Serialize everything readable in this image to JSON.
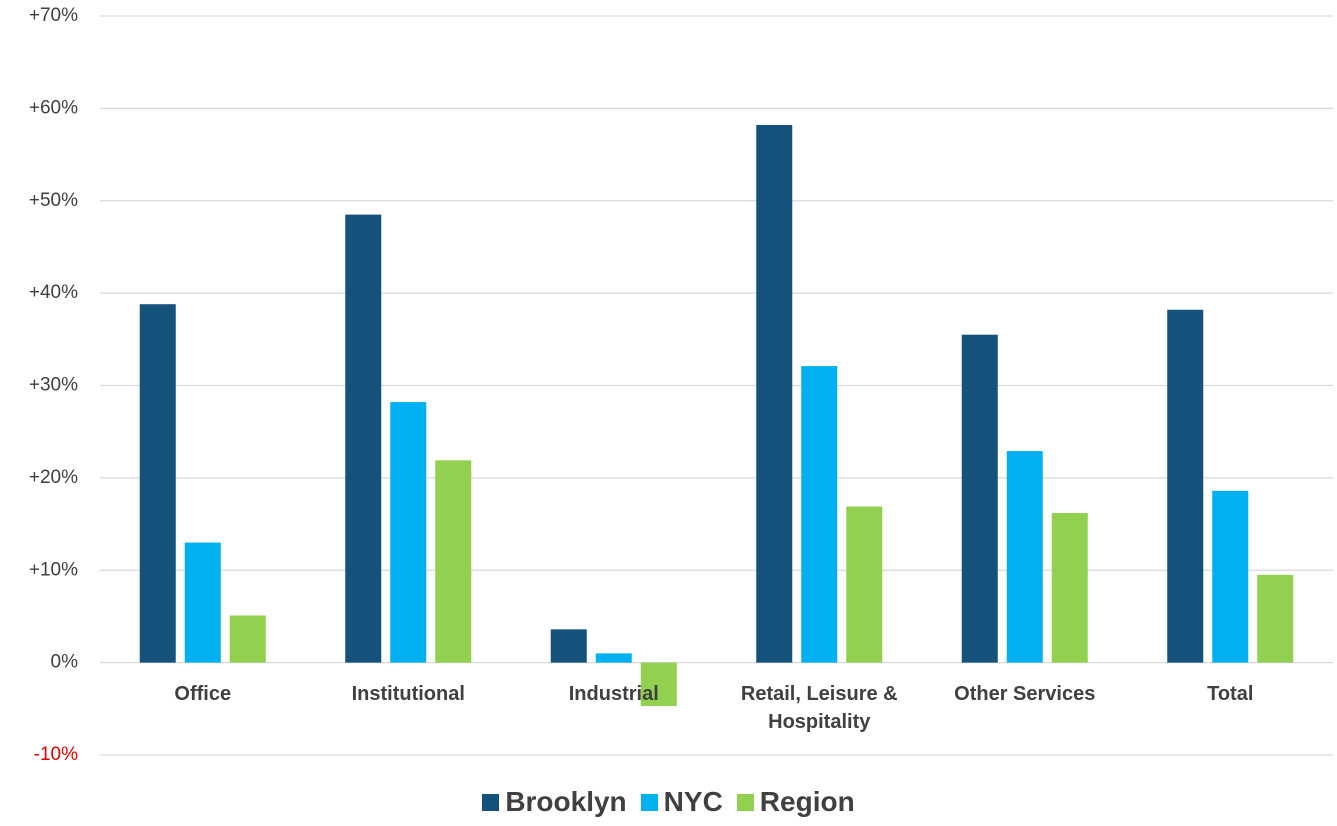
{
  "chart_data": {
    "type": "bar",
    "categories": [
      "Office",
      "Institutional",
      "Industrial",
      "Retail, Leisure & Hospitality",
      "Other Services",
      "Total"
    ],
    "series": [
      {
        "name": "Brooklyn",
        "color": "#14527c",
        "values": [
          38.8,
          48.5,
          3.6,
          58.2,
          35.5,
          38.2
        ]
      },
      {
        "name": "NYC",
        "color": "#00b0f0",
        "values": [
          13.0,
          28.2,
          1.0,
          32.1,
          22.9,
          18.6
        ]
      },
      {
        "name": "Region",
        "color": "#92d050",
        "values": [
          5.1,
          21.9,
          -4.7,
          16.9,
          16.2,
          9.5
        ]
      }
    ],
    "ylim": [
      -10,
      70
    ],
    "yticks": [
      {
        "value": -10,
        "label": "-10%"
      },
      {
        "value": 0,
        "label": "0%"
      },
      {
        "value": 10,
        "label": "+10%"
      },
      {
        "value": 20,
        "label": "+20%"
      },
      {
        "value": 30,
        "label": "+30%"
      },
      {
        "value": 40,
        "label": "+40%"
      },
      {
        "value": 50,
        "label": "+50%"
      },
      {
        "value": 60,
        "label": "+60%"
      },
      {
        "value": 70,
        "label": "+70%"
      }
    ],
    "grid": true,
    "negative_tick_color": "#e00000",
    "legend": "bottom"
  }
}
